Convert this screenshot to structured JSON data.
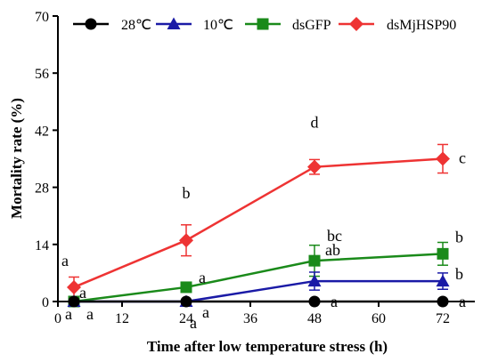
{
  "chart_data": {
    "type": "line",
    "title": "",
    "xlabel": "Time after low temperature stress (h)",
    "ylabel": "Mortality rate (%)",
    "xlim": [
      0,
      78
    ],
    "ylim": [
      0,
      70
    ],
    "x_ticks": [
      0,
      12,
      24,
      36,
      48,
      60,
      72
    ],
    "y_ticks": [
      0,
      14,
      28,
      42,
      56,
      70
    ],
    "grid": false,
    "legend_position": "top",
    "x": [
      3,
      24,
      48,
      72
    ],
    "series": [
      {
        "name": "28℃",
        "color": "#000000",
        "marker": "circle",
        "values": [
          0,
          0,
          0,
          0
        ],
        "errors": [
          0,
          0,
          0,
          0
        ],
        "labels": [
          "a",
          "a",
          "a",
          "a"
        ]
      },
      {
        "name": "10℃",
        "color": "#1a1aa6",
        "marker": "triangle",
        "values": [
          0,
          0,
          5,
          5
        ],
        "errors": [
          0,
          0,
          2.2,
          2
        ],
        "labels": [
          "a",
          "a",
          "ab",
          "b"
        ]
      },
      {
        "name": "dsGFP",
        "color": "#1a8a1a",
        "marker": "square",
        "values": [
          0,
          3.5,
          10,
          11.7
        ],
        "errors": [
          0,
          1,
          3.8,
          2.8
        ],
        "labels": [
          "a",
          "a",
          "bc",
          "b"
        ]
      },
      {
        "name": "dsMjHSP90",
        "color": "#ee3333",
        "marker": "diamond",
        "values": [
          3.5,
          15,
          33,
          35
        ],
        "errors": [
          2.5,
          3.8,
          1.8,
          3.5
        ],
        "labels": [
          "a",
          "b",
          "d",
          "c"
        ]
      }
    ]
  }
}
